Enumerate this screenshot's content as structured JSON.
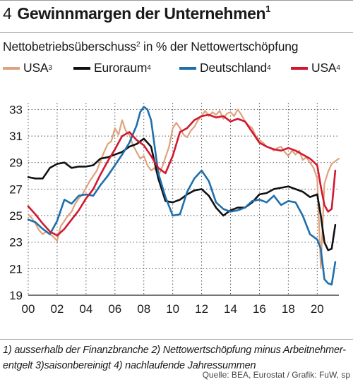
{
  "header": {
    "number": "4",
    "title": "Gewinnmargen der Unternehmen",
    "title_note": "1",
    "subtitle": "Nettobetriebsüberschuss",
    "subtitle_note": "2",
    "subtitle_rest": " in % der Nettowertschöpfung"
  },
  "legend": [
    {
      "label": "USA",
      "note": "3",
      "color": "#dfa27e"
    },
    {
      "label": "Euroraum",
      "note": "4",
      "color": "#111111"
    },
    {
      "label": "Deutschland",
      "note": "4",
      "color": "#1f6fad"
    },
    {
      "label": "USA",
      "note": "4",
      "color": "#d0192f"
    }
  ],
  "footnote": {
    "line1": "1) ausserhalb der Finanzbranche   2) Nettowertschöpfung minus Arbeitnehmer-",
    "line2": "entgelt   3)saisonbereinigt   4) nachlaufende Jahressummen"
  },
  "source": "Quelle: BEA, Eurostat / Grafik: FuW, sp",
  "chart_data": {
    "type": "line",
    "title": "Gewinnmargen der Unternehmen",
    "subtitle": "Nettobetriebsüberschuss in % der Nettowertschöpfung",
    "xlim": [
      2000,
      2021.5
    ],
    "ylim": [
      19,
      33.5
    ],
    "x_ticks": [
      2000,
      2002,
      2004,
      2006,
      2008,
      2010,
      2012,
      2014,
      2016,
      2018,
      2020
    ],
    "x_tick_labels": [
      "00",
      "02",
      "04",
      "06",
      "08",
      "10",
      "12",
      "14",
      "16",
      "18",
      "20"
    ],
    "y_ticks": [
      19,
      21,
      23,
      25,
      27,
      29,
      31,
      33
    ],
    "grid": true,
    "legend_position": "top",
    "series": [
      {
        "name": "USA3",
        "color": "#dfa27e",
        "x": [
          2000,
          2000.25,
          2000.5,
          2000.75,
          2001,
          2001.25,
          2001.5,
          2001.75,
          2002,
          2002.25,
          2002.5,
          2002.75,
          2003,
          2003.25,
          2003.5,
          2003.75,
          2004,
          2004.25,
          2004.5,
          2004.75,
          2005,
          2005.25,
          2005.5,
          2005.75,
          2006,
          2006.25,
          2006.5,
          2006.75,
          2007,
          2007.25,
          2007.5,
          2007.75,
          2008,
          2008.25,
          2008.5,
          2008.75,
          2009,
          2009.25,
          2009.5,
          2009.75,
          2010,
          2010.25,
          2010.5,
          2010.75,
          2011,
          2011.25,
          2011.5,
          2011.75,
          2012,
          2012.25,
          2012.5,
          2012.75,
          2013,
          2013.25,
          2013.5,
          2013.75,
          2014,
          2014.25,
          2014.5,
          2014.75,
          2015,
          2015.25,
          2015.5,
          2015.75,
          2016,
          2016.25,
          2016.5,
          2016.75,
          2017,
          2017.25,
          2017.5,
          2017.75,
          2018,
          2018.25,
          2018.5,
          2018.75,
          2019,
          2019.25,
          2019.5,
          2019.75,
          2020,
          2020.25,
          2020.5,
          2020.75,
          2021,
          2021.25,
          2021.5
        ],
        "y": [
          25.1,
          24.8,
          24.4,
          23.9,
          23.6,
          23.8,
          23.6,
          23.4,
          23.1,
          24.2,
          24.6,
          25.0,
          25.3,
          25.9,
          26.3,
          26.6,
          27.1,
          27.6,
          28.0,
          28.4,
          29.1,
          29.8,
          30.4,
          30.6,
          31.6,
          31.1,
          32.2,
          31.4,
          31.1,
          30.3,
          29.8,
          29.3,
          29.5,
          28.8,
          28.4,
          28.6,
          28.0,
          28.6,
          29.4,
          30.2,
          31.6,
          32.0,
          31.6,
          31.1,
          30.9,
          31.4,
          31.7,
          32.2,
          32.5,
          32.9,
          32.5,
          32.8,
          32.6,
          32.9,
          32.3,
          32.7,
          32.8,
          32.5,
          33.0,
          32.6,
          32.1,
          31.8,
          31.6,
          31.0,
          30.7,
          30.5,
          30.2,
          30.1,
          29.9,
          30.1,
          30.2,
          29.8,
          29.5,
          29.9,
          29.6,
          29.9,
          29.2,
          29.4,
          29.0,
          28.6,
          27.8,
          21.1,
          27.4,
          28.3,
          28.9,
          29.1,
          29.3
        ]
      },
      {
        "name": "Euroraum4",
        "color": "#111111",
        "x": [
          2000,
          2000.5,
          2001,
          2001.5,
          2002,
          2002.5,
          2003,
          2003.5,
          2004,
          2004.5,
          2005,
          2005.5,
          2006,
          2006.5,
          2007,
          2007.5,
          2008,
          2008.5,
          2009,
          2009.5,
          2010,
          2010.5,
          2011,
          2011.5,
          2012,
          2012.5,
          2013,
          2013.5,
          2014,
          2014.5,
          2015,
          2015.5,
          2016,
          2016.5,
          2017,
          2017.5,
          2018,
          2018.5,
          2019,
          2019.5,
          2020,
          2020.25,
          2020.5,
          2020.75,
          2021,
          2021.25
        ],
        "y": [
          27.9,
          27.8,
          27.8,
          28.6,
          28.9,
          29.0,
          28.6,
          28.7,
          28.7,
          28.8,
          29.3,
          29.4,
          29.6,
          29.8,
          30.2,
          30.4,
          30.8,
          30.2,
          27.8,
          26.1,
          26.0,
          26.2,
          26.6,
          26.9,
          27.0,
          26.5,
          25.6,
          25.0,
          25.4,
          25.6,
          25.6,
          26.0,
          26.6,
          26.7,
          27.0,
          27.1,
          27.2,
          27.0,
          26.8,
          26.4,
          26.6,
          25.0,
          23.0,
          22.4,
          22.5,
          24.3
        ]
      },
      {
        "name": "Deutschland4",
        "color": "#1f6fad",
        "x": [
          2000,
          2000.5,
          2001,
          2001.5,
          2002,
          2002.5,
          2003,
          2003.5,
          2004,
          2004.5,
          2005,
          2005.5,
          2006,
          2006.5,
          2007,
          2007.5,
          2007.75,
          2008,
          2008.25,
          2008.5,
          2008.75,
          2009,
          2009.5,
          2010,
          2010.5,
          2011,
          2011.5,
          2012,
          2012.5,
          2013,
          2013.5,
          2014,
          2014.5,
          2015,
          2015.5,
          2016,
          2016.5,
          2017,
          2017.5,
          2018,
          2018.5,
          2019,
          2019.5,
          2020,
          2020.25,
          2020.5,
          2020.75,
          2021,
          2021.25
        ],
        "y": [
          24.7,
          24.5,
          24.0,
          23.6,
          24.6,
          26.2,
          25.9,
          26.5,
          26.6,
          26.5,
          27.3,
          28.0,
          28.8,
          29.6,
          30.5,
          31.8,
          32.8,
          33.2,
          33.0,
          32.2,
          30.2,
          28.2,
          26.4,
          25.0,
          25.1,
          26.8,
          27.8,
          28.4,
          27.6,
          26.0,
          25.5,
          25.3,
          25.4,
          25.6,
          26.1,
          26.2,
          26.0,
          26.5,
          25.8,
          26.1,
          26.0,
          25.0,
          23.6,
          23.2,
          22.5,
          20.2,
          19.9,
          19.8,
          21.5
        ]
      },
      {
        "name": "USA4",
        "color": "#d0192f",
        "x": [
          2000,
          2000.5,
          2001,
          2001.5,
          2002,
          2002.5,
          2003,
          2003.5,
          2004,
          2004.5,
          2005,
          2005.5,
          2006,
          2006.5,
          2007,
          2007.5,
          2008,
          2008.5,
          2009,
          2009.5,
          2010,
          2010.5,
          2011,
          2011.5,
          2012,
          2012.5,
          2013,
          2013.5,
          2014,
          2014.5,
          2015,
          2015.5,
          2016,
          2016.5,
          2017,
          2017.5,
          2018,
          2018.5,
          2019,
          2019.5,
          2020,
          2020.25,
          2020.5,
          2020.75,
          2021,
          2021.25
        ],
        "y": [
          25.7,
          25.1,
          24.4,
          23.8,
          23.5,
          24.0,
          24.7,
          25.4,
          26.3,
          27.0,
          28.1,
          29.1,
          30.0,
          31.0,
          31.3,
          30.7,
          30.3,
          29.5,
          28.6,
          28.2,
          29.5,
          31.3,
          31.6,
          32.2,
          32.5,
          32.6,
          32.4,
          32.5,
          32.1,
          32.3,
          32.1,
          31.3,
          30.5,
          30.2,
          30.0,
          29.9,
          30.1,
          29.9,
          29.6,
          29.3,
          28.8,
          27.2,
          25.8,
          25.3,
          25.5,
          28.4
        ]
      }
    ]
  }
}
